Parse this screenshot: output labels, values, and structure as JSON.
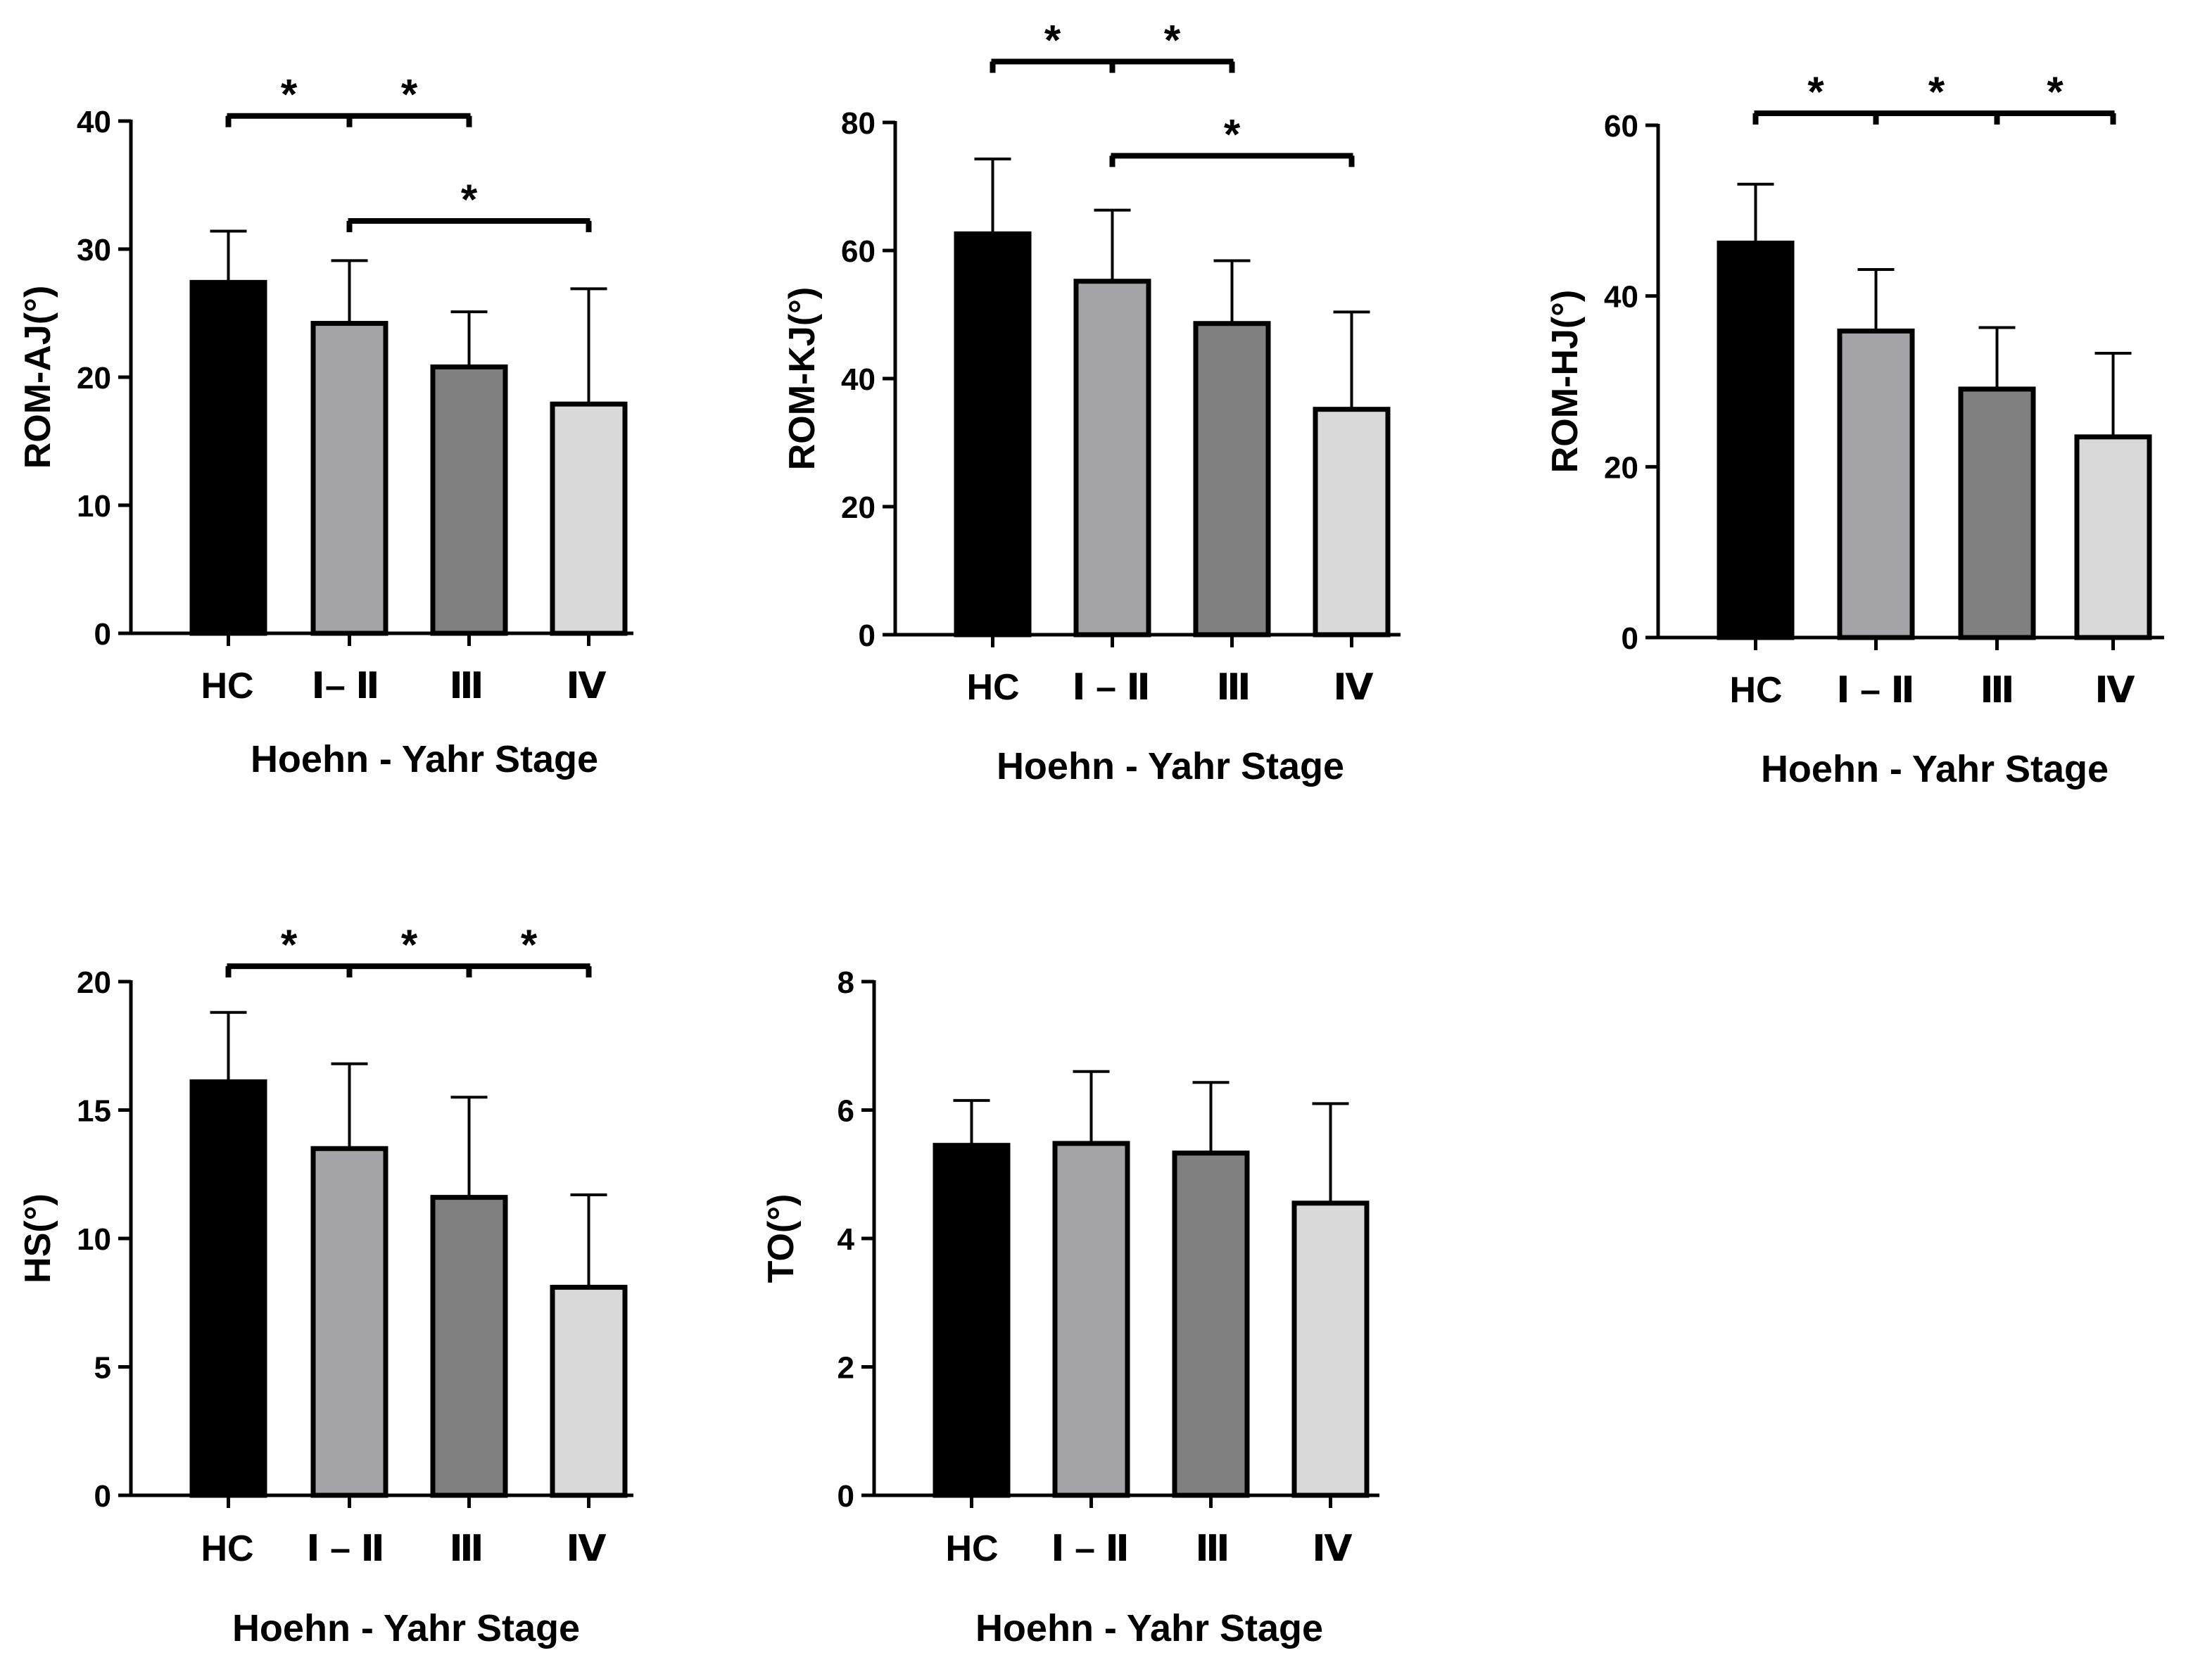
{
  "colors": {
    "HC": "#000000",
    "I–II": "#a3a3a8",
    "III": "#808080",
    "IV": "#d9d9d9",
    "axis": "#000000",
    "outline": "#000000"
  },
  "chart_data": [
    {
      "type": "bar",
      "title": "",
      "xlabel": "Hoehn - Yahr Stage",
      "ylabel": "ROM-AJ(°)",
      "categories": [
        "HC",
        "Ⅰ– Ⅱ",
        "Ⅲ",
        "Ⅳ"
      ],
      "values": [
        27.4,
        24.2,
        20.8,
        17.9
      ],
      "error_upper": [
        31.4,
        29.1,
        25.1,
        26.9
      ],
      "ylim": [
        0,
        40
      ],
      "yticks": [
        0,
        10,
        20,
        30,
        40
      ],
      "significance": [
        {
          "from": 0,
          "to": 2,
          "anchors": [
            0,
            1,
            2
          ],
          "stars": [
            "*",
            "*"
          ],
          "level": 40.4
        },
        {
          "from": 1,
          "to": 3,
          "anchors": [
            1,
            3
          ],
          "stars": [
            "*"
          ],
          "level": 32.2
        }
      ]
    },
    {
      "type": "bar",
      "title": "",
      "xlabel": "Hoehn - Yahr Stage",
      "ylabel": "ROM-KJ(°)",
      "categories": [
        "HC",
        "Ⅰ – Ⅱ",
        "Ⅲ",
        "Ⅳ"
      ],
      "values": [
        62.6,
        55.2,
        48.6,
        35.2
      ],
      "error_upper": [
        74.3,
        66.3,
        58.4,
        50.4
      ],
      "ylim": [
        0,
        80
      ],
      "yticks": [
        0,
        20,
        40,
        60,
        80
      ],
      "significance": [
        {
          "from": 0,
          "to": 2,
          "anchors": [
            0,
            1,
            2
          ],
          "stars": [
            "*",
            "*"
          ],
          "level": 89.5
        },
        {
          "from": 1,
          "to": 3,
          "anchors": [
            1,
            3
          ],
          "stars": [
            "*"
          ],
          "level": 74.8
        }
      ]
    },
    {
      "type": "bar",
      "title": "",
      "xlabel": "Hoehn - Yahr Stage",
      "ylabel": "ROM-HJ(°)",
      "categories": [
        "HC",
        "Ⅰ – Ⅱ",
        "Ⅲ",
        "Ⅳ"
      ],
      "values": [
        46.2,
        35.9,
        29.1,
        23.5
      ],
      "error_upper": [
        53.1,
        43.1,
        36.3,
        33.3
      ],
      "ylim": [
        0,
        60
      ],
      "yticks": [
        0,
        20,
        40,
        60
      ],
      "significance": [
        {
          "from": 0,
          "to": 3,
          "anchors": [
            0,
            1,
            2,
            3
          ],
          "stars": [
            "*",
            "*",
            "*"
          ],
          "level": 61.4
        }
      ]
    },
    {
      "type": "bar",
      "title": "",
      "xlabel": "Hoehn - Yahr Stage",
      "ylabel": "HS(°)",
      "categories": [
        "HC",
        "Ⅰ – Ⅱ",
        "Ⅲ",
        "Ⅳ"
      ],
      "values": [
        16.1,
        13.5,
        11.6,
        8.1
      ],
      "error_upper": [
        18.8,
        16.8,
        15.5,
        11.7
      ],
      "ylim": [
        0,
        20
      ],
      "yticks": [
        0,
        5,
        10,
        15,
        20
      ],
      "significance": [
        {
          "from": 0,
          "to": 3,
          "anchors": [
            0,
            1,
            2,
            3
          ],
          "stars": [
            "*",
            "*",
            "*"
          ],
          "level": 20.6
        }
      ]
    },
    {
      "type": "bar",
      "title": "",
      "xlabel": "Hoehn - Yahr Stage",
      "ylabel": "TO(°)",
      "categories": [
        "HC",
        "Ⅰ – Ⅱ",
        "Ⅲ",
        "Ⅳ"
      ],
      "values": [
        5.45,
        5.48,
        5.33,
        4.55
      ],
      "error_upper": [
        6.15,
        6.6,
        6.43,
        6.1
      ],
      "ylim": [
        0,
        8
      ],
      "yticks": [
        0,
        2,
        4,
        6,
        8
      ],
      "significance": []
    }
  ]
}
